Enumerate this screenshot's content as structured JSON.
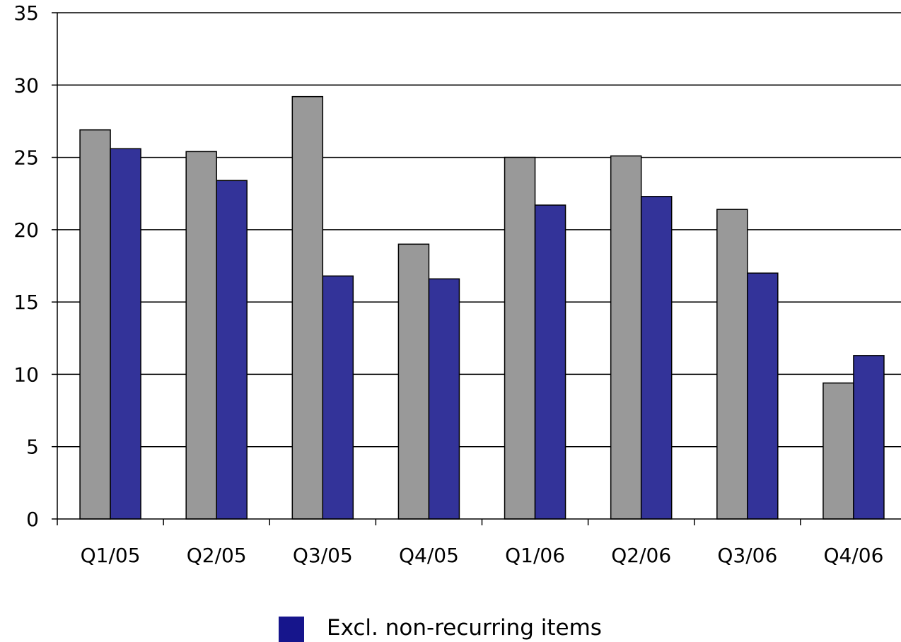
{
  "chart_data": {
    "type": "bar",
    "categories": [
      "Q1/05",
      "Q2/05",
      "Q3/05",
      "Q4/05",
      "Q1/06",
      "Q2/06",
      "Q3/06",
      "Q4/06"
    ],
    "series": [
      {
        "values": [
          26.9,
          25.4,
          29.2,
          19.0,
          25.0,
          25.1,
          21.4,
          9.4
        ],
        "color": "#999999"
      },
      {
        "name": "Excl. non-recurring items",
        "values": [
          25.6,
          23.4,
          16.8,
          16.6,
          21.7,
          22.3,
          17.0,
          11.3
        ],
        "color": "#333399"
      }
    ],
    "ylim": [
      0,
      35
    ],
    "yticks": [
      0,
      5,
      10,
      15,
      20,
      25,
      30,
      35
    ],
    "grid": true,
    "legend": "bottom-center",
    "legend_entries": [
      "Excl. non-recurring items"
    ],
    "legend_color": "#16158c"
  }
}
